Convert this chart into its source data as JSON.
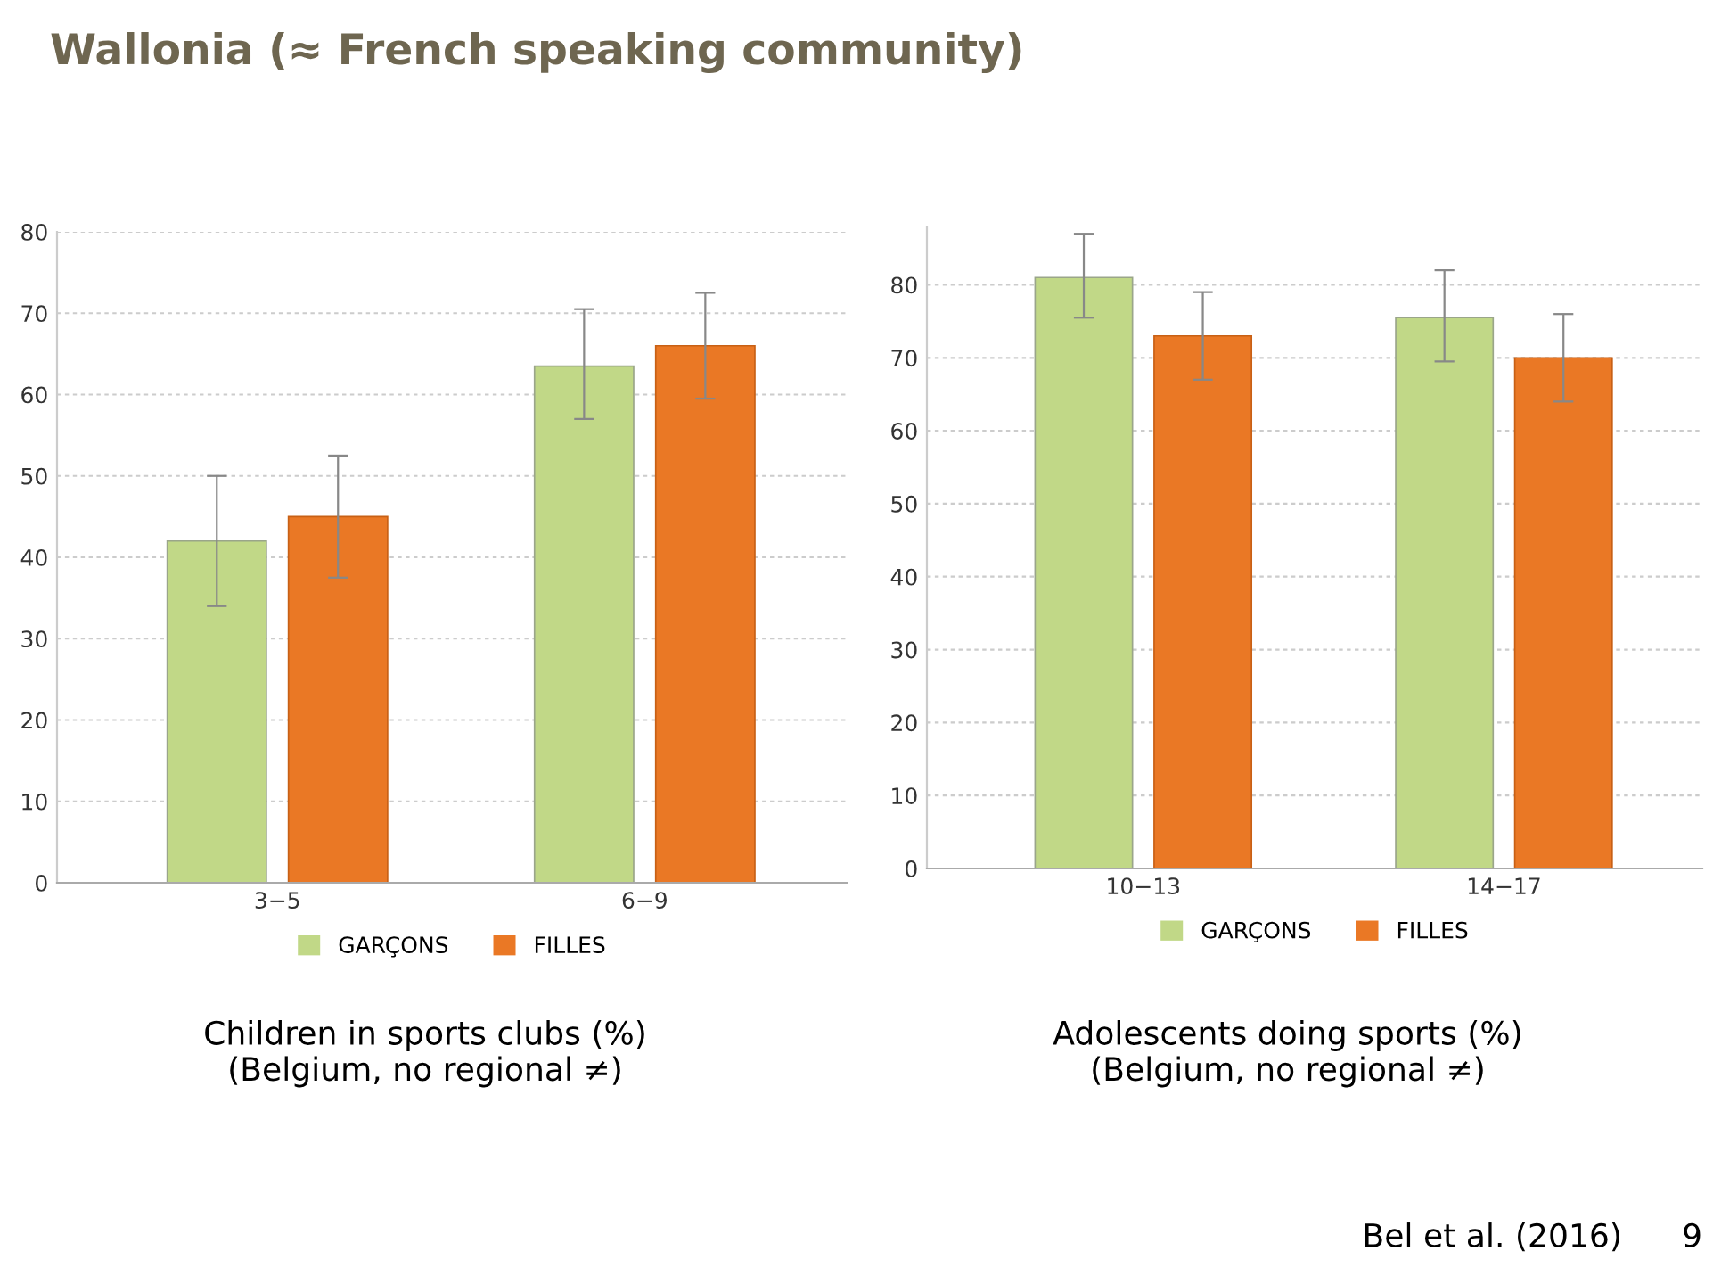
{
  "chart_data": [
    {
      "type": "bar",
      "title": "Wallonia (≈ French speaking community)",
      "categories": [
        "3−5",
        "6−9"
      ],
      "series": [
        {
          "name": "GARÇONS",
          "color": "#c1d887",
          "values": [
            42,
            63.5
          ],
          "errors": [
            [
              34,
              50
            ],
            [
              57,
              70.5
            ]
          ]
        },
        {
          "name": "FILLES",
          "color": "#ea7825",
          "values": [
            45,
            66
          ],
          "errors": [
            [
              37.5,
              52.5
            ],
            [
              59.5,
              72.5
            ]
          ]
        }
      ],
      "ylim": [
        0,
        80
      ],
      "yticks": [
        0,
        10,
        20,
        30,
        40,
        50,
        60,
        70,
        80
      ],
      "grid": "y",
      "legend": "bottom",
      "annotations": [
        "Children in sports clubs (%)\n(Belgium, no regional ≠)"
      ]
    },
    {
      "type": "bar",
      "categories": [
        "10−13",
        "14−17"
      ],
      "series": [
        {
          "name": "GARÇONS",
          "color": "#c1d887",
          "values": [
            81,
            75.5
          ],
          "errors": [
            [
              75.5,
              87
            ],
            [
              69.5,
              82
            ]
          ]
        },
        {
          "name": "FILLES",
          "color": "#ea7825",
          "values": [
            73,
            70
          ],
          "errors": [
            [
              67,
              79
            ],
            [
              64,
              76
            ]
          ]
        }
      ],
      "ylim": [
        0,
        88
      ],
      "yticks": [
        0,
        10,
        20,
        30,
        40,
        50,
        60,
        70,
        80
      ],
      "grid": "y",
      "legend": "bottom",
      "annotations": [
        "Adolescents doing sports (%)\n(Belgium, no regional ≠)",
        "Bel et al. (2016)",
        "9"
      ]
    }
  ]
}
